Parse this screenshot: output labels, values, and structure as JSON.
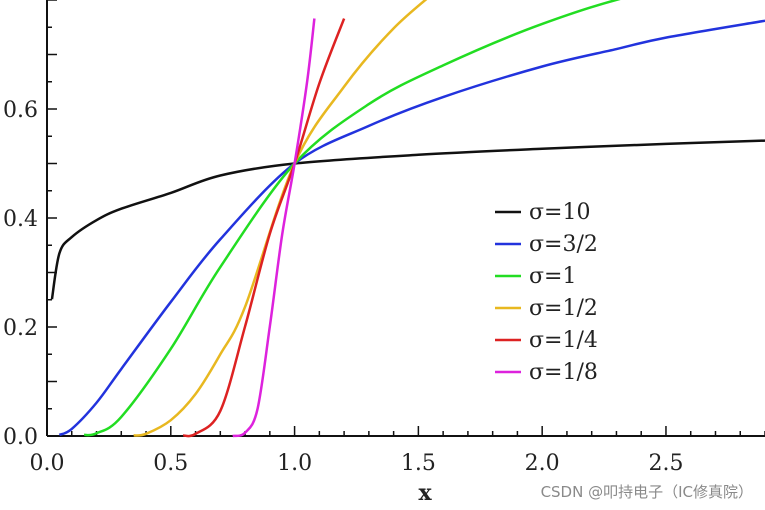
{
  "chart_data": {
    "type": "line",
    "xlabel": "x",
    "ylabel": "",
    "xlim": [
      0.0,
      2.9
    ],
    "ylim": [
      0.0,
      0.8
    ],
    "x_ticks": [
      "0.0",
      "0.5",
      "1.0",
      "1.5",
      "2.0",
      "2.5"
    ],
    "y_ticks": [
      "0.0",
      "0.2",
      "0.4",
      "0.6"
    ],
    "legend_position": "center-right",
    "series": [
      {
        "name": "σ=10",
        "color": "#111111",
        "x": [
          0.02,
          0.05,
          0.1,
          0.2,
          0.3,
          0.5,
          0.7,
          1.0,
          1.5,
          2.0,
          2.5,
          2.9
        ],
        "values": [
          0.251,
          0.335,
          0.365,
          0.396,
          0.417,
          0.446,
          0.478,
          0.5,
          0.516,
          0.527,
          0.536,
          0.542
        ]
      },
      {
        "name": "σ=3/2",
        "color": "#2233dd",
        "x": [
          0.05,
          0.1,
          0.2,
          0.3,
          0.5,
          0.7,
          1.0,
          1.3,
          1.6,
          2.0,
          2.3,
          2.5,
          2.9
        ],
        "values": [
          0.002,
          0.013,
          0.061,
          0.123,
          0.246,
          0.361,
          0.5,
          0.569,
          0.622,
          0.678,
          0.71,
          0.731,
          0.762
        ]
      },
      {
        "name": "σ=1",
        "color": "#22dd22",
        "x": [
          0.15,
          0.2,
          0.3,
          0.5,
          0.7,
          1.0,
          1.3,
          1.6,
          2.0,
          2.4,
          2.9
        ],
        "values": [
          0.002,
          0.005,
          0.035,
          0.16,
          0.31,
          0.5,
          0.609,
          0.68,
          0.756,
          0.812,
          0.855
        ]
      },
      {
        "name": "σ=1/2",
        "color": "#e8b820",
        "x": [
          0.35,
          0.4,
          0.5,
          0.6,
          0.7,
          0.8,
          1.0,
          1.2,
          1.4,
          1.6
        ],
        "values": [
          0.001,
          0.004,
          0.029,
          0.077,
          0.15,
          0.237,
          0.5,
          0.641,
          0.748,
          0.827
        ]
      },
      {
        "name": "σ=1/4",
        "color": "#dd2222",
        "x": [
          0.55,
          0.6,
          0.7,
          0.8,
          0.9,
          1.0,
          1.1,
          1.2
        ],
        "values": [
          0.001,
          0.004,
          0.046,
          0.201,
          0.371,
          0.5,
          0.647,
          0.766
        ]
      },
      {
        "name": "σ=1/8",
        "color": "#dd22dd",
        "x": [
          0.75,
          0.8,
          0.85,
          0.9,
          0.95,
          1.0,
          1.05,
          1.08
        ],
        "values": [
          0.0,
          0.006,
          0.049,
          0.201,
          0.37,
          0.5,
          0.648,
          0.766
        ]
      }
    ]
  },
  "watermark": "CSDN @叩持电子（IC修真院）"
}
